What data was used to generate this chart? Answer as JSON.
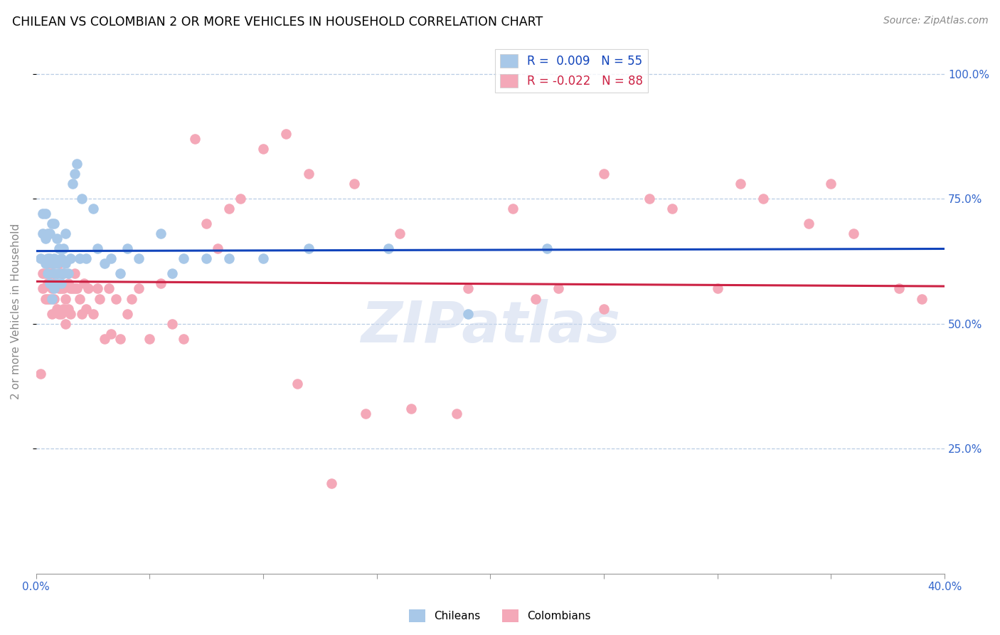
{
  "title": "CHILEAN VS COLOMBIAN 2 OR MORE VEHICLES IN HOUSEHOLD CORRELATION CHART",
  "source": "Source: ZipAtlas.com",
  "ylabel": "2 or more Vehicles in Household",
  "ytick_labels": [
    "100.0%",
    "75.0%",
    "50.0%",
    "25.0%"
  ],
  "ytick_values": [
    1.0,
    0.75,
    0.5,
    0.25
  ],
  "chilean_color": "#a8c8e8",
  "colombian_color": "#f4a8b8",
  "trendline_chilean_color": "#1144bb",
  "trendline_colombian_color": "#cc2244",
  "watermark": "ZIPatlas",
  "chilean_R": 0.009,
  "chilean_N": 55,
  "colombian_R": -0.022,
  "colombian_N": 88,
  "chilean_x": [
    0.002,
    0.003,
    0.003,
    0.004,
    0.004,
    0.004,
    0.005,
    0.005,
    0.005,
    0.006,
    0.006,
    0.006,
    0.007,
    0.007,
    0.007,
    0.008,
    0.008,
    0.008,
    0.008,
    0.009,
    0.009,
    0.009,
    0.01,
    0.01,
    0.011,
    0.011,
    0.012,
    0.012,
    0.013,
    0.013,
    0.014,
    0.015,
    0.016,
    0.017,
    0.018,
    0.019,
    0.02,
    0.022,
    0.025,
    0.027,
    0.03,
    0.033,
    0.037,
    0.04,
    0.045,
    0.055,
    0.06,
    0.065,
    0.075,
    0.085,
    0.1,
    0.12,
    0.155,
    0.19,
    0.225
  ],
  "chilean_y": [
    0.63,
    0.68,
    0.72,
    0.62,
    0.67,
    0.72,
    0.6,
    0.63,
    0.68,
    0.58,
    0.63,
    0.68,
    0.55,
    0.62,
    0.7,
    0.57,
    0.6,
    0.63,
    0.7,
    0.58,
    0.62,
    0.67,
    0.6,
    0.65,
    0.58,
    0.63,
    0.6,
    0.65,
    0.62,
    0.68,
    0.6,
    0.63,
    0.78,
    0.8,
    0.82,
    0.63,
    0.75,
    0.63,
    0.73,
    0.65,
    0.62,
    0.63,
    0.6,
    0.65,
    0.63,
    0.68,
    0.6,
    0.63,
    0.63,
    0.63,
    0.63,
    0.65,
    0.65,
    0.52,
    0.65
  ],
  "colombian_x": [
    0.002,
    0.003,
    0.003,
    0.004,
    0.004,
    0.005,
    0.005,
    0.005,
    0.006,
    0.006,
    0.007,
    0.007,
    0.007,
    0.008,
    0.008,
    0.008,
    0.009,
    0.009,
    0.01,
    0.01,
    0.01,
    0.011,
    0.011,
    0.011,
    0.012,
    0.012,
    0.012,
    0.013,
    0.013,
    0.014,
    0.014,
    0.015,
    0.015,
    0.016,
    0.017,
    0.017,
    0.018,
    0.019,
    0.02,
    0.021,
    0.022,
    0.023,
    0.025,
    0.027,
    0.028,
    0.03,
    0.032,
    0.033,
    0.035,
    0.037,
    0.04,
    0.042,
    0.045,
    0.05,
    0.055,
    0.06,
    0.065,
    0.07,
    0.075,
    0.08,
    0.085,
    0.09,
    0.1,
    0.11,
    0.12,
    0.14,
    0.16,
    0.19,
    0.22,
    0.25,
    0.28,
    0.31,
    0.34,
    0.36,
    0.38,
    0.39,
    0.35,
    0.32,
    0.3,
    0.27,
    0.25,
    0.23,
    0.21,
    0.185,
    0.165,
    0.145,
    0.13,
    0.115
  ],
  "colombian_y": [
    0.4,
    0.57,
    0.6,
    0.55,
    0.6,
    0.55,
    0.58,
    0.62,
    0.55,
    0.6,
    0.52,
    0.57,
    0.6,
    0.55,
    0.58,
    0.62,
    0.53,
    0.58,
    0.52,
    0.57,
    0.62,
    0.52,
    0.57,
    0.6,
    0.53,
    0.57,
    0.6,
    0.5,
    0.55,
    0.53,
    0.58,
    0.52,
    0.57,
    0.57,
    0.57,
    0.6,
    0.57,
    0.55,
    0.52,
    0.58,
    0.53,
    0.57,
    0.52,
    0.57,
    0.55,
    0.47,
    0.57,
    0.48,
    0.55,
    0.47,
    0.52,
    0.55,
    0.57,
    0.47,
    0.58,
    0.5,
    0.47,
    0.87,
    0.7,
    0.65,
    0.73,
    0.75,
    0.85,
    0.88,
    0.8,
    0.78,
    0.68,
    0.57,
    0.55,
    0.8,
    0.73,
    0.78,
    0.7,
    0.68,
    0.57,
    0.55,
    0.78,
    0.75,
    0.57,
    0.75,
    0.53,
    0.57,
    0.73,
    0.32,
    0.33,
    0.32,
    0.18,
    0.38
  ]
}
